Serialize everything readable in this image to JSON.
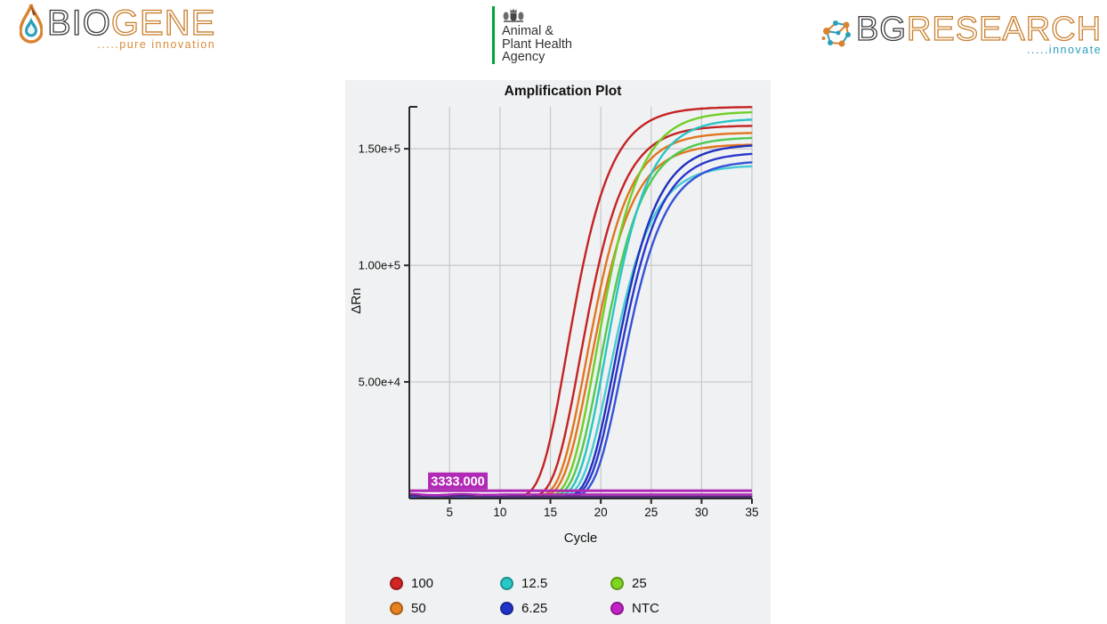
{
  "header": {
    "biogene": {
      "name_bio": "BIO",
      "name_gene": "GENE",
      "tagline": ".....pure innovation"
    },
    "apha": {
      "line1": "Animal &",
      "line2": "Plant Health",
      "line3": "Agency"
    },
    "bg_research": {
      "name_bg": "BG",
      "name_research": "RESEARCH",
      "tagline": ".....innovate"
    }
  },
  "theme": {
    "brand_orange": "#c9802f",
    "brand_dark": "#3a3a3a",
    "brand_teal": "#2a9fbc",
    "apha_green": "#00a33b",
    "panel_bg": "#f0f1f2"
  },
  "chart_data": {
    "type": "line",
    "title": "Amplification Plot",
    "xlabel": "Cycle",
    "ylabel": "ΔRn",
    "xlim": [
      1,
      35
    ],
    "ylim": [
      0,
      168000
    ],
    "xticks": [
      5,
      10,
      15,
      20,
      25,
      30,
      35
    ],
    "yticks": [
      {
        "value": 50000,
        "label": "5.00e+4"
      },
      {
        "value": 100000,
        "label": "1.00e+5"
      },
      {
        "value": 150000,
        "label": "1.50e+5"
      }
    ],
    "grid": true,
    "sigmoid_steepness": 0.4,
    "baseline": 600,
    "threshold": {
      "value": 3333,
      "label": "3333.000",
      "color": "#b02ab6"
    },
    "series": [
      {
        "name": "100",
        "color": "#c42323",
        "curves": [
          {
            "midpoint": 16.6,
            "plateau": 168000
          },
          {
            "midpoint": 17.9,
            "plateau": 160000
          }
        ]
      },
      {
        "name": "50",
        "color": "#e0761f",
        "curves": [
          {
            "midpoint": 18.5,
            "plateau": 157000
          },
          {
            "midpoint": 18.9,
            "plateau": 152000
          }
        ]
      },
      {
        "name": "25",
        "color": "#70cf27",
        "curves": [
          {
            "midpoint": 19.5,
            "plateau": 166000
          },
          {
            "midpoint": 19.9,
            "plateau": 155000,
            "color": "#4fca52"
          }
        ]
      },
      {
        "name": "12.5",
        "color": "#2bc4c4",
        "curves": [
          {
            "midpoint": 20.4,
            "plateau": 163000
          },
          {
            "midpoint": 20.8,
            "plateau": 143000,
            "color": "#46ccd4"
          }
        ]
      },
      {
        "name": "6.25",
        "color": "#2030bd",
        "curves": [
          {
            "midpoint": 21.3,
            "plateau": 152000
          },
          {
            "midpoint": 21.6,
            "plateau": 148500,
            "color": "#2838cc"
          },
          {
            "midpoint": 22.0,
            "plateau": 145000,
            "color": "#3352d6"
          }
        ]
      },
      {
        "name": "NTC",
        "color": "#b02ab6",
        "curves": [
          {
            "flat": true,
            "value": 1700,
            "wobble": 350
          },
          {
            "flat": true,
            "value": 800,
            "wobble": 650,
            "color": "#552a80"
          }
        ]
      }
    ],
    "legend": {
      "position": "bottom",
      "items": [
        {
          "label": "100",
          "color": "#d42424"
        },
        {
          "label": "12.5",
          "color": "#28c8c8"
        },
        {
          "label": "25",
          "color": "#7ed61e"
        },
        {
          "label": "50",
          "color": "#e8821f"
        },
        {
          "label": "6.25",
          "color": "#2233cc"
        },
        {
          "label": "NTC",
          "color": "#c322c8"
        }
      ]
    }
  }
}
